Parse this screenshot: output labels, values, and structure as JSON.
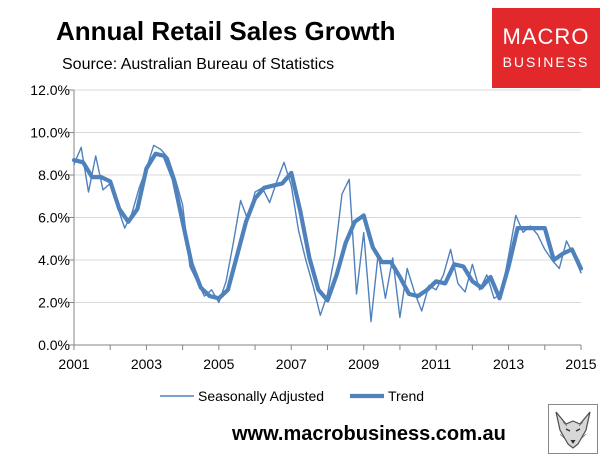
{
  "header": {
    "title": "Annual Retail Sales Growth",
    "source": "Source: Australian Bureau of Statistics"
  },
  "brand": {
    "line1": "MACRO",
    "line2": "BUSINESS",
    "color": "#e3282b"
  },
  "footer": {
    "website": "www.macrobusiness.com.au"
  },
  "colors": {
    "series": "#4f81bd",
    "grid": "#d9d9d9",
    "axis": "#868686"
  },
  "chart_data": {
    "type": "line",
    "title": "Annual Retail Sales Growth",
    "xlabel": "",
    "ylabel": "",
    "xlim": [
      2001,
      2015
    ],
    "ylim": [
      0,
      12
    ],
    "grid": true,
    "legend_position": "bottom",
    "x_ticks": [
      2001,
      2003,
      2005,
      2007,
      2009,
      2011,
      2013,
      2015
    ],
    "x_tick_labels": [
      "2001",
      "2003",
      "2005",
      "2007",
      "2009",
      "2011",
      "2013",
      "2015"
    ],
    "y_ticks": [
      0,
      2,
      4,
      6,
      8,
      10,
      12
    ],
    "y_tick_labels": [
      "0.0%",
      "2.0%",
      "4.0%",
      "6.0%",
      "8.0%",
      "10.0%",
      "12.0%"
    ],
    "series": [
      {
        "name": "Seasonally Adjusted",
        "x": [
          2001.0,
          2001.2,
          2001.4,
          2001.6,
          2001.8,
          2002.0,
          2002.2,
          2002.4,
          2002.6,
          2002.8,
          2003.0,
          2003.2,
          2003.4,
          2003.6,
          2003.8,
          2004.0,
          2004.2,
          2004.4,
          2004.6,
          2004.8,
          2005.0,
          2005.2,
          2005.4,
          2005.6,
          2005.8,
          2006.0,
          2006.2,
          2006.4,
          2006.6,
          2006.8,
          2007.0,
          2007.2,
          2007.4,
          2007.6,
          2007.8,
          2008.0,
          2008.2,
          2008.4,
          2008.6,
          2008.8,
          2009.0,
          2009.2,
          2009.4,
          2009.6,
          2009.8,
          2010.0,
          2010.2,
          2010.4,
          2010.6,
          2010.8,
          2011.0,
          2011.2,
          2011.4,
          2011.6,
          2011.8,
          2012.0,
          2012.2,
          2012.4,
          2012.6,
          2012.8,
          2013.0,
          2013.2,
          2013.4,
          2013.6,
          2013.8,
          2014.0,
          2014.2,
          2014.4,
          2014.6,
          2014.8,
          2015.0
        ],
        "values": [
          8.5,
          9.3,
          7.2,
          8.9,
          7.3,
          7.6,
          6.5,
          5.5,
          6.2,
          7.4,
          8.3,
          9.4,
          9.2,
          8.8,
          7.8,
          6.6,
          3.7,
          3.0,
          2.3,
          2.6,
          2.0,
          3.0,
          4.8,
          6.8,
          5.9,
          7.2,
          7.4,
          6.7,
          7.7,
          8.6,
          7.5,
          5.4,
          4.0,
          2.8,
          1.4,
          2.4,
          4.2,
          7.1,
          7.8,
          2.4,
          5.3,
          1.1,
          4.3,
          2.2,
          4.1,
          1.3,
          3.6,
          2.5,
          1.6,
          2.8,
          2.6,
          3.3,
          4.5,
          2.9,
          2.5,
          3.8,
          2.6,
          3.3,
          2.2,
          2.4,
          4.2,
          6.1,
          5.3,
          5.6,
          5.2,
          4.5,
          4.0,
          3.6,
          4.9,
          4.2,
          3.4
        ]
      },
      {
        "name": "Trend",
        "x": [
          2001.0,
          2001.25,
          2001.5,
          2001.75,
          2002.0,
          2002.25,
          2002.5,
          2002.75,
          2003.0,
          2003.25,
          2003.5,
          2003.75,
          2004.0,
          2004.25,
          2004.5,
          2004.75,
          2005.0,
          2005.25,
          2005.5,
          2005.75,
          2006.0,
          2006.25,
          2006.5,
          2006.75,
          2007.0,
          2007.25,
          2007.5,
          2007.75,
          2008.0,
          2008.25,
          2008.5,
          2008.75,
          2009.0,
          2009.25,
          2009.5,
          2009.75,
          2010.0,
          2010.25,
          2010.5,
          2010.75,
          2011.0,
          2011.25,
          2011.5,
          2011.75,
          2012.0,
          2012.25,
          2012.5,
          2012.75,
          2013.0,
          2013.25,
          2013.5,
          2013.75,
          2014.0,
          2014.25,
          2014.5,
          2014.75,
          2015.0
        ],
        "values": [
          8.7,
          8.6,
          7.9,
          7.9,
          7.7,
          6.4,
          5.8,
          6.4,
          8.3,
          9.0,
          8.9,
          7.8,
          5.8,
          3.8,
          2.7,
          2.3,
          2.2,
          2.6,
          4.2,
          5.8,
          6.9,
          7.4,
          7.5,
          7.6,
          8.1,
          6.3,
          4.1,
          2.6,
          2.1,
          3.3,
          4.8,
          5.8,
          6.1,
          4.6,
          3.9,
          3.9,
          3.2,
          2.4,
          2.3,
          2.6,
          3.0,
          2.9,
          3.8,
          3.7,
          3.0,
          2.7,
          3.2,
          2.2,
          3.7,
          5.5,
          5.5,
          5.5,
          5.5,
          4.0,
          4.3,
          4.5,
          3.6
        ]
      }
    ]
  }
}
